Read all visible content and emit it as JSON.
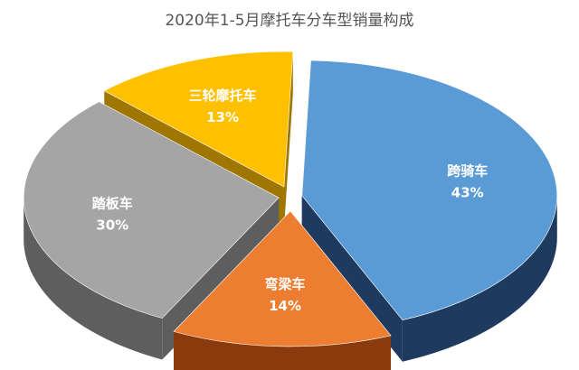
{
  "chart_data": {
    "type": "pie",
    "title": "2020年1-5月摩托车分车型销量构成",
    "slices": [
      {
        "name": "跨骑车",
        "value": 43,
        "label": "43%",
        "color": "#5b9bd5",
        "side_color": "#1f3a5f"
      },
      {
        "name": "弯梁车",
        "value": 14,
        "label": "14%",
        "color": "#ed7d31",
        "side_color": "#8a3a0c"
      },
      {
        "name": "踏板车",
        "value": 30,
        "label": "30%",
        "color": "#a5a5a5",
        "side_color": "#5e5e5e"
      },
      {
        "name": "三轮摩托车",
        "value": 13,
        "label": "13%",
        "color": "#ffc000",
        "side_color": "#9e7600"
      }
    ],
    "legend": "none",
    "exploded": true,
    "three_d": true
  }
}
